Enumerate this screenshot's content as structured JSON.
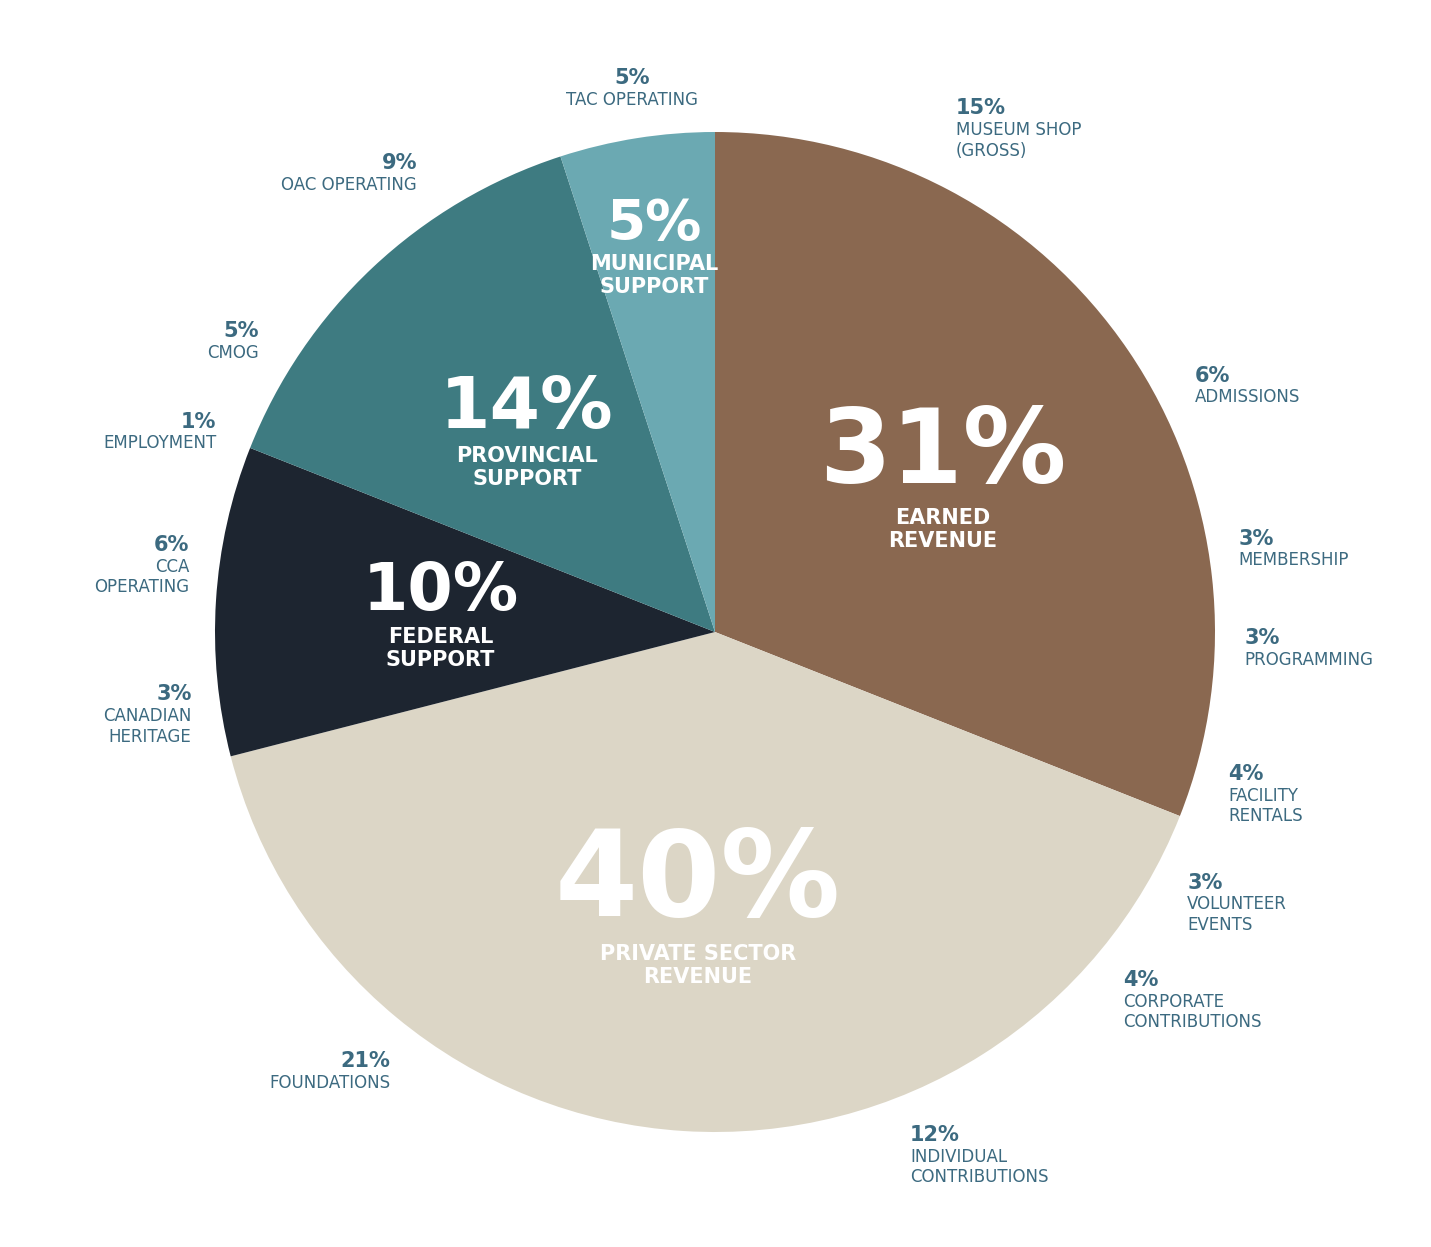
{
  "chart_data": {
    "type": "pie",
    "categories": [
      "EARNED\nREVENUE",
      "PRIVATE SECTOR\nREVENUE",
      "FEDERAL\nSUPPORT",
      "PROVINCIAL\nSUPPORT",
      "MUNICIPAL\nSUPPORT"
    ],
    "values": [
      31,
      40,
      10,
      14,
      5
    ],
    "value_labels": [
      "31%",
      "40%",
      "10%",
      "14%",
      "5%"
    ],
    "colors": [
      "#8a6850",
      "#dcd6c6",
      "#1d2530",
      "#3e7b81",
      "#6ba9b2"
    ],
    "sub_items": [
      {
        "categories": [
          "MUSEUM SHOP\n(GROSS)",
          "ADMISSIONS",
          "MEMBERSHIP",
          "PROGRAMMING",
          "FACILITY\nRENTALS"
        ],
        "values": [
          15,
          6,
          3,
          3,
          4
        ],
        "value_labels": [
          "15%",
          "6%",
          "3%",
          "3%",
          "4%"
        ]
      },
      {
        "categories": [
          "VOLUNTEER\nEVENTS",
          "CORPORATE\nCONTRIBUTIONS",
          "INDIVIDUAL\nCONTRIBUTIONS",
          "FOUNDATIONS"
        ],
        "values": [
          3,
          4,
          12,
          21
        ],
        "value_labels": [
          "3%",
          "4%",
          "12%",
          "21%"
        ]
      },
      {
        "categories": [
          "CANADIAN\nHERITAGE",
          "CCA\nOPERATING",
          "EMPLOYMENT"
        ],
        "values": [
          3,
          6,
          1
        ],
        "value_labels": [
          "3%",
          "6%",
          "1%"
        ]
      },
      {
        "categories": [
          "CMOG",
          "OAC OPERATING"
        ],
        "values": [
          5,
          9
        ],
        "value_labels": [
          "5%",
          "9%"
        ]
      },
      {
        "categories": [
          "TAC OPERATING"
        ],
        "values": [
          5
        ],
        "value_labels": [
          "5%"
        ]
      }
    ]
  }
}
